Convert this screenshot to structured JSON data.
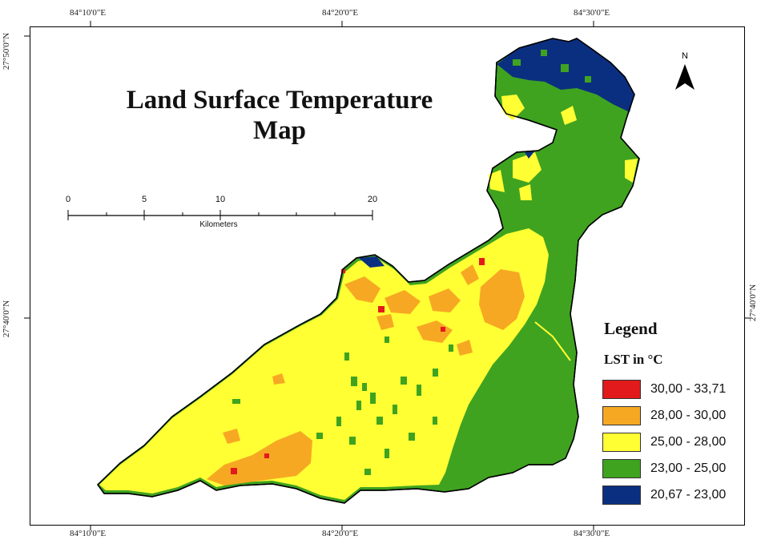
{
  "map": {
    "title_line1": "Land Surface Temperature",
    "title_line2": "Map",
    "north_label": "N",
    "scale": {
      "labels": [
        "0",
        "5",
        "10",
        "20"
      ],
      "unit": "Kilometers"
    },
    "coordinates": {
      "top": [
        "84°10'0\"E",
        "84°20'0\"E",
        "84°30'0\"E"
      ],
      "bottom": [
        "84°10'0\"E",
        "84°20'0\"E",
        "84°30'0\"E"
      ],
      "left": [
        "27°50'0\"N",
        "27°40'0\"N"
      ],
      "right": [
        "27°40'0\"N"
      ]
    }
  },
  "legend": {
    "title": "Legend",
    "subtitle": "LST in °C",
    "classes": [
      {
        "label": "30,00 - 33,71",
        "color": "#e31a1c"
      },
      {
        "label": "28,00 - 30,00",
        "color": "#f7a823"
      },
      {
        "label": "25,00 - 28,00",
        "color": "#ffff33"
      },
      {
        "label": "23,00 - 25,00",
        "color": "#3fa320"
      },
      {
        "label": "20,67 - 23,00",
        "color": "#0b2f80"
      }
    ]
  }
}
